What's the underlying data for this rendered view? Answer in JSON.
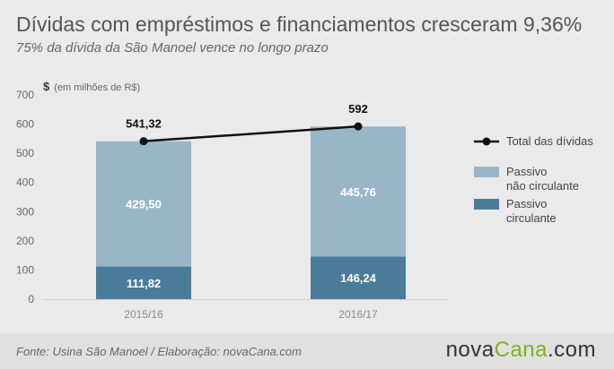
{
  "title": "Dívidas com empréstimos e financiamentos cresceram 9,36%",
  "subtitle": "75% da dívida da São Manoel vence no longo prazo",
  "source": "Fonte: Usina São Manoel / Elaboração: novaCana.com",
  "logo": {
    "part1": "nova",
    "part2": "Cana",
    "part3": ".com"
  },
  "colors": {
    "nao_circulante": "#99b6c8",
    "circulante": "#4a7c99",
    "total_line": "#111111",
    "accent": "#7ab317"
  },
  "chart_data": {
    "type": "bar",
    "stacked": true,
    "unit_symbol": "$",
    "unit_label": "(em milhões de R$)",
    "categories": [
      "2015/16",
      "2016/17"
    ],
    "ylim": [
      0,
      700
    ],
    "yticks": [
      0,
      100,
      200,
      300,
      400,
      500,
      600,
      700
    ],
    "series": [
      {
        "name": "Passivo circulante",
        "values": [
          111.82,
          146.24
        ],
        "labels": [
          "111,82",
          "146,24"
        ]
      },
      {
        "name": "Passivo não circulante",
        "values": [
          429.5,
          445.76
        ],
        "labels": [
          "429,50",
          "445,76"
        ]
      }
    ],
    "line": {
      "name": "Total das dívidas",
      "values": [
        541.32,
        592
      ],
      "labels": [
        "541,32",
        "592"
      ]
    },
    "legend": [
      {
        "key": "total",
        "lines": [
          "Total das dívidas"
        ]
      },
      {
        "key": "nao_circulante",
        "lines": [
          "Passivo",
          "não circulante"
        ]
      },
      {
        "key": "circulante",
        "lines": [
          "Passivo",
          "circulante"
        ]
      }
    ],
    "grid": false,
    "legend_position": "right"
  }
}
